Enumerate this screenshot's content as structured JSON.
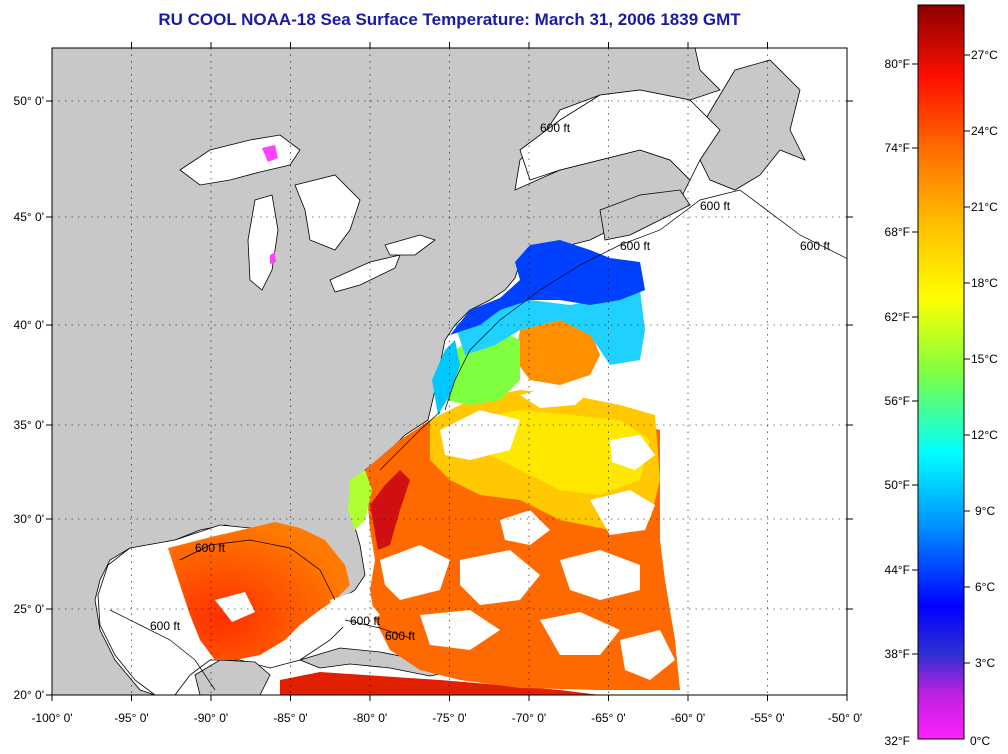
{
  "title": "RU COOL  NOAA-18  Sea Surface Temperature:  March 31, 2006 1839 GMT",
  "map": {
    "lon_labels": [
      "-100° 0'",
      "-95° 0'",
      "-90° 0'",
      "-85° 0'",
      "-80° 0'",
      "-75° 0'",
      "-70° 0'",
      "-65° 0'",
      "-60° 0'",
      "-55° 0'",
      "-50° 0'"
    ],
    "lat_labels": [
      "50° 0'",
      "45° 0'",
      "40° 0'",
      "35° 0'",
      "30° 0'",
      "25° 0'",
      "20° 0'"
    ],
    "contour_label": "600 ft",
    "colors": {
      "land": "#c8c8c8",
      "ocean_no_data": "#ffffff",
      "coast": "#000000"
    }
  },
  "colorbar": {
    "f_labels": [
      "80°F",
      "74°F",
      "68°F",
      "62°F",
      "56°F",
      "50°F",
      "44°F",
      "38°F",
      "32°F"
    ],
    "c_labels": [
      "27°C",
      "24°C",
      "21°C",
      "18°C",
      "15°C",
      "12°C",
      "9°C",
      "6°C",
      "3°C",
      "0°C"
    ],
    "gradient": [
      "#8b0000",
      "#ff0000",
      "#ff7000",
      "#ffd000",
      "#ffff00",
      "#80ff40",
      "#00ffff",
      "#0090ff",
      "#0000ff",
      "#7000d0",
      "#ff20ff"
    ]
  }
}
